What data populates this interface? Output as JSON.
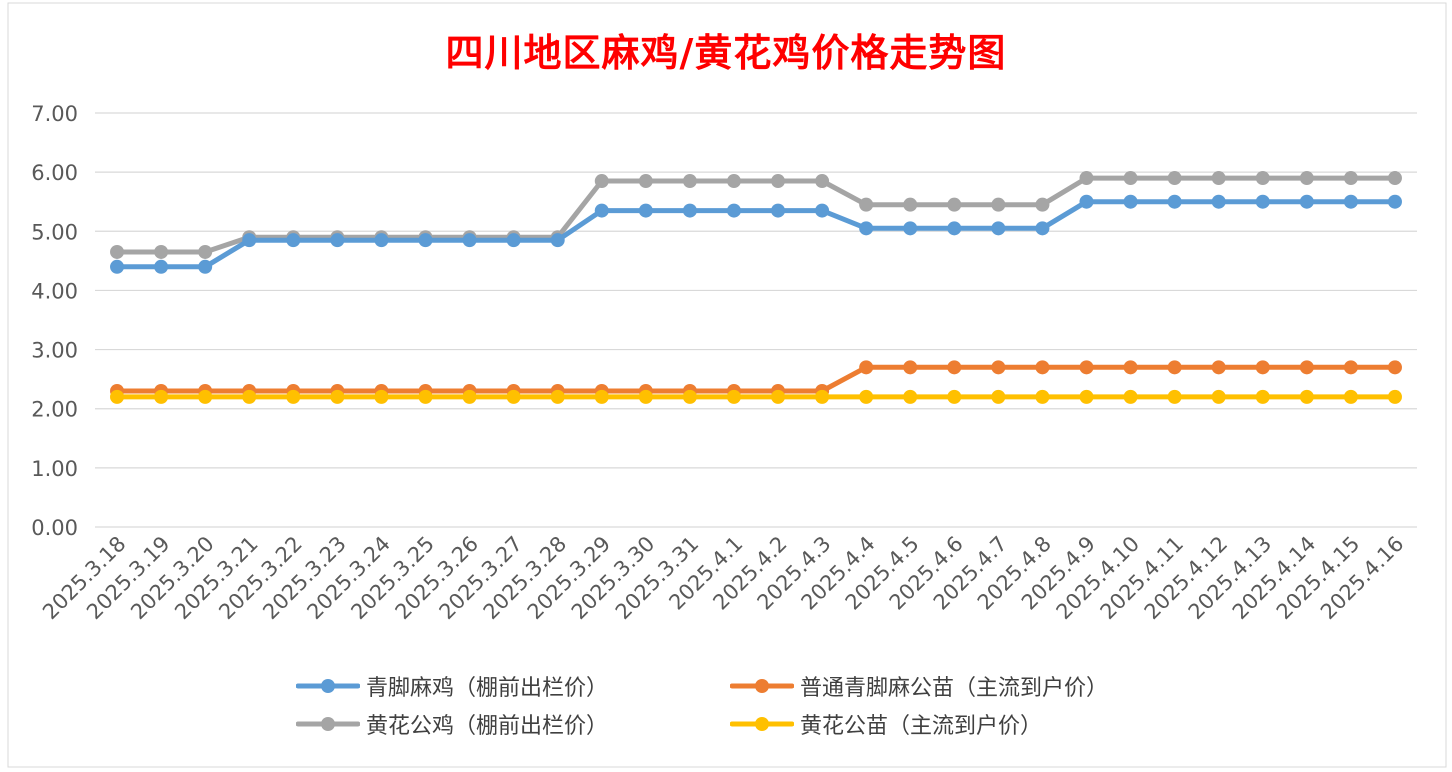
{
  "chart_data": {
    "type": "line",
    "title": "四川地区麻鸡/黄花鸡价格走势图",
    "categories": [
      "2025.3.18",
      "2025.3.19",
      "2025.3.20",
      "2025.3.21",
      "2025.3.22",
      "2025.3.23",
      "2025.3.24",
      "2025.3.25",
      "2025.3.26",
      "2025.3.27",
      "2025.3.28",
      "2025.3.29",
      "2025.3.30",
      "2025.3.31",
      "2025.4.1",
      "2025.4.2",
      "2025.4.3",
      "2025.4.4",
      "2025.4.5",
      "2025.4.6",
      "2025.4.7",
      "2025.4.8",
      "2025.4.9",
      "2025.4.10",
      "2025.4.11",
      "2025.4.12",
      "2025.4.13",
      "2025.4.14",
      "2025.4.15",
      "2025.4.16"
    ],
    "yticks": [
      "0.00",
      "1.00",
      "2.00",
      "3.00",
      "4.00",
      "5.00",
      "6.00",
      "7.00"
    ],
    "ylim": [
      0,
      7
    ],
    "grid": true,
    "legend_position": "bottom",
    "series": [
      {
        "name": "青脚麻鸡（棚前出栏价）",
        "color": "#5b9bd5",
        "values": [
          4.4,
          4.4,
          4.4,
          4.85,
          4.85,
          4.85,
          4.85,
          4.85,
          4.85,
          4.85,
          4.85,
          5.35,
          5.35,
          5.35,
          5.35,
          5.35,
          5.35,
          5.05,
          5.05,
          5.05,
          5.05,
          5.05,
          5.5,
          5.5,
          5.5,
          5.5,
          5.5,
          5.5,
          5.5,
          5.5
        ]
      },
      {
        "name": "普通青脚麻公苗（主流到户价）",
        "color": "#ed7d31",
        "values": [
          2.3,
          2.3,
          2.3,
          2.3,
          2.3,
          2.3,
          2.3,
          2.3,
          2.3,
          2.3,
          2.3,
          2.3,
          2.3,
          2.3,
          2.3,
          2.3,
          2.3,
          2.7,
          2.7,
          2.7,
          2.7,
          2.7,
          2.7,
          2.7,
          2.7,
          2.7,
          2.7,
          2.7,
          2.7,
          2.7
        ]
      },
      {
        "name": "黄花公鸡（棚前出栏价）",
        "color": "#a5a5a5",
        "values": [
          4.65,
          4.65,
          4.65,
          4.9,
          4.9,
          4.9,
          4.9,
          4.9,
          4.9,
          4.9,
          4.9,
          5.85,
          5.85,
          5.85,
          5.85,
          5.85,
          5.85,
          5.45,
          5.45,
          5.45,
          5.45,
          5.45,
          5.9,
          5.9,
          5.9,
          5.9,
          5.9,
          5.9,
          5.9,
          5.9
        ]
      },
      {
        "name": "黄花公苗（主流到户价）",
        "color": "#ffc000",
        "values": [
          2.2,
          2.2,
          2.2,
          2.2,
          2.2,
          2.2,
          2.2,
          2.2,
          2.2,
          2.2,
          2.2,
          2.2,
          2.2,
          2.2,
          2.2,
          2.2,
          2.2,
          2.2,
          2.2,
          2.2,
          2.2,
          2.2,
          2.2,
          2.2,
          2.2,
          2.2,
          2.2,
          2.2,
          2.2,
          2.2
        ]
      }
    ],
    "series_draw_order": [
      2,
      0,
      1,
      3
    ]
  }
}
